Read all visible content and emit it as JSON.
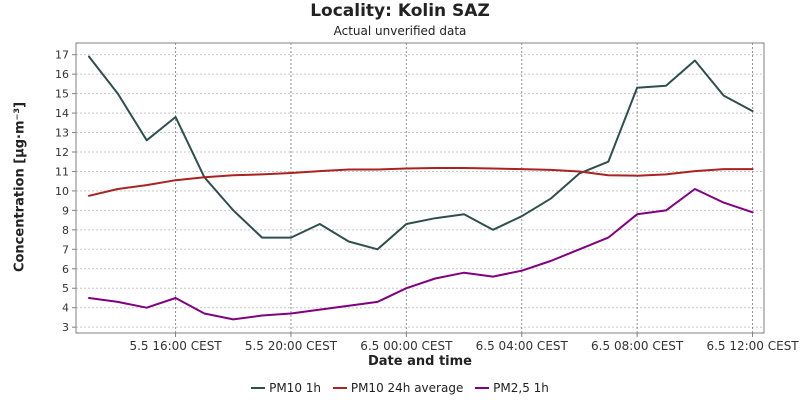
{
  "chart_data": {
    "type": "line",
    "title": "Locality: Kolin SAZ",
    "subtitle": "Actual unverified data",
    "xlabel": "Date and time",
    "ylabel": "Concentration [µg·m⁻³]",
    "x": [
      "5.5 13:00",
      "5.5 14:00",
      "5.5 15:00",
      "5.5 16:00",
      "5.5 17:00",
      "5.5 18:00",
      "5.5 19:00",
      "5.5 20:00",
      "5.5 21:00",
      "5.5 22:00",
      "5.5 23:00",
      "6.5 00:00",
      "6.5 01:00",
      "6.5 02:00",
      "6.5 03:00",
      "6.5 04:00",
      "6.5 05:00",
      "6.5 06:00",
      "6.5 07:00",
      "6.5 08:00",
      "6.5 09:00",
      "6.5 10:00",
      "6.5 11:00",
      "6.5 12:00"
    ],
    "xtick_labels": [
      "5.5 16:00 CEST",
      "5.5 20:00 CEST",
      "6.5 00:00 CEST",
      "6.5 04:00 CEST",
      "6.5 08:00 CEST",
      "6.5 12:00 CEST"
    ],
    "xtick_index": [
      3,
      7,
      11,
      15,
      19,
      23
    ],
    "ylim": [
      2.7,
      17.6
    ],
    "yticks": [
      3,
      4,
      5,
      6,
      7,
      8,
      9,
      10,
      11,
      12,
      13,
      14,
      15,
      16,
      17
    ],
    "grid": true,
    "legend_position": "bottom",
    "series": [
      {
        "name": "PM10 1h",
        "color": "#2f4f4f",
        "values": [
          16.9,
          15.0,
          12.6,
          13.8,
          10.7,
          9.0,
          7.6,
          7.6,
          8.3,
          7.4,
          7.0,
          8.3,
          8.6,
          8.8,
          8.0,
          8.7,
          9.6,
          10.9,
          11.5,
          15.3,
          15.4,
          16.7,
          14.9,
          14.1
        ]
      },
      {
        "name": "PM10 24h average",
        "color": "#aa2222",
        "values": [
          9.75,
          10.1,
          10.3,
          10.55,
          10.7,
          10.8,
          10.85,
          10.92,
          11.02,
          11.1,
          11.1,
          11.15,
          11.18,
          11.18,
          11.15,
          11.12,
          11.08,
          11.0,
          10.8,
          10.78,
          10.85,
          11.02,
          11.12,
          11.12
        ]
      },
      {
        "name": "PM2,5 1h",
        "color": "#800080",
        "values": [
          4.5,
          4.3,
          4.0,
          4.5,
          3.7,
          3.4,
          3.6,
          3.7,
          3.9,
          4.1,
          4.3,
          5.0,
          5.5,
          5.8,
          5.6,
          5.9,
          6.4,
          7.0,
          7.6,
          8.8,
          9.0,
          10.1,
          9.4,
          8.9
        ]
      }
    ]
  }
}
